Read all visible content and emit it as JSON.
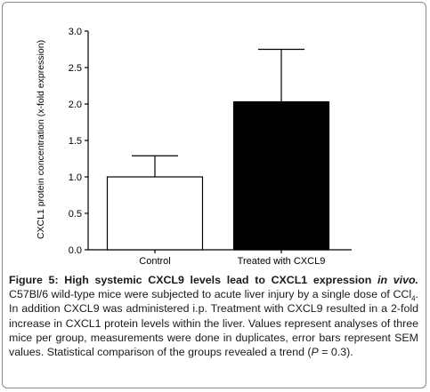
{
  "chart_data": {
    "type": "bar",
    "categories": [
      "Control",
      "Treated with CXCL9"
    ],
    "values": [
      1.0,
      2.03
    ],
    "errors": [
      0.29,
      0.72
    ],
    "bar_colors": [
      "#ffffff",
      "#000000"
    ],
    "ylabel": "CXCL1 protein concentration (x-fold expression)",
    "ylim": [
      0,
      3.0
    ],
    "yticks": [
      "0.0",
      "0.5",
      "1.0",
      "1.5",
      "2.0",
      "2.5",
      "3.0"
    ],
    "ytick_values": [
      0,
      0.5,
      1.0,
      1.5,
      2.0,
      2.5,
      3.0
    ]
  },
  "caption": {
    "label": "Figure 5:",
    "title_main": "High systemic CXCL9 levels lead to CXCL1 expression",
    "title_italic": "in vivo.",
    "text_1": "C57Bl/6 wild-type mice were subjected to acute liver injury by a single dose of CCl",
    "subscript": "4",
    "text_2": ". In addition CXCL9 was administered i.p. Treatment with CXCL9 resulted in a 2-fold increase in CXCL1 protein levels within the liver. Values represent analyses of three mice per group, measurements were done in duplicates, error bars represent SEM values. Statistical comparison of the groups revealed a trend (",
    "p_symbol": "P",
    "text_3": " = 0.3)."
  }
}
